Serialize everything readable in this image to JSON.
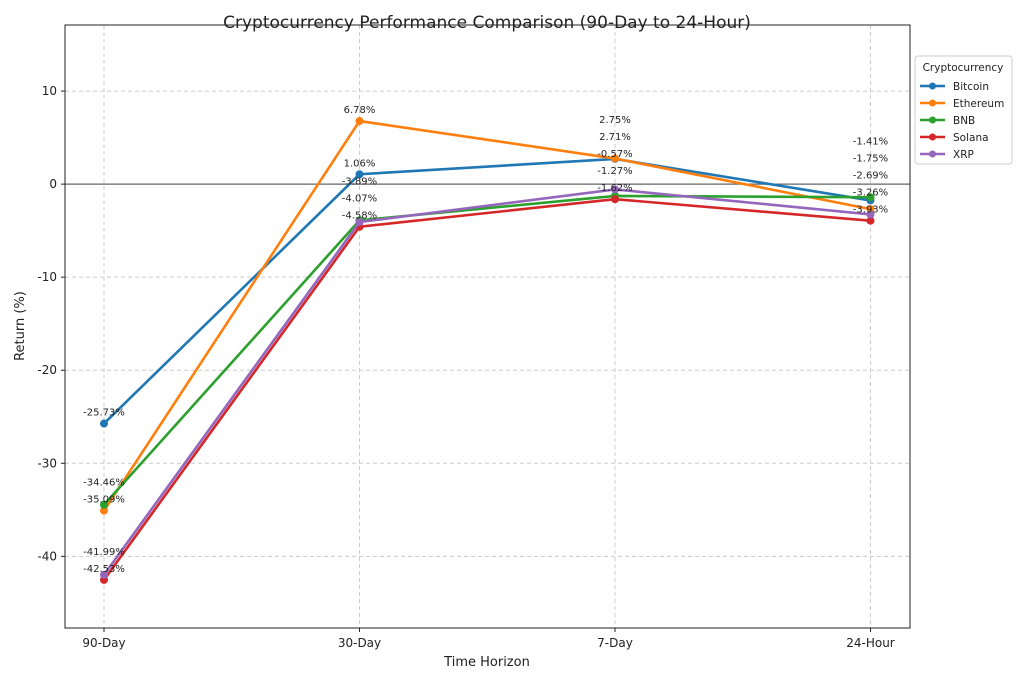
{
  "chart_data": {
    "type": "line",
    "title": "Cryptocurrency Performance Comparison (90-Day to 24-Hour)",
    "xlabel": "Time Horizon",
    "ylabel": "Return (%)",
    "categories": [
      "90-Day",
      "30-Day",
      "7-Day",
      "24-Hour"
    ],
    "ylim": [
      -47.7,
      17.1
    ],
    "yticks": [
      10,
      0,
      -10,
      -20,
      -30,
      -40
    ],
    "grid": true,
    "zero_line": true,
    "legend": {
      "title": "Cryptocurrency",
      "placement": "outside-top-right"
    },
    "value_suffix": "%",
    "series": [
      {
        "name": "Bitcoin",
        "color": "#1f77b4",
        "values": [
          -25.73,
          1.06,
          2.71,
          -1.75
        ]
      },
      {
        "name": "Ethereum",
        "color": "#ff7f0e",
        "values": [
          -35.09,
          6.78,
          2.75,
          -2.69
        ]
      },
      {
        "name": "BNB",
        "color": "#2ca02c",
        "values": [
          -34.46,
          -3.89,
          -1.27,
          -1.41
        ]
      },
      {
        "name": "Solana",
        "color": "#d62728",
        "values": [
          -42.53,
          -4.58,
          -1.62,
          -3.93
        ]
      },
      {
        "name": "XRP",
        "color": "#9467bd",
        "values": [
          -41.99,
          -4.07,
          -0.57,
          -3.26
        ]
      }
    ]
  }
}
